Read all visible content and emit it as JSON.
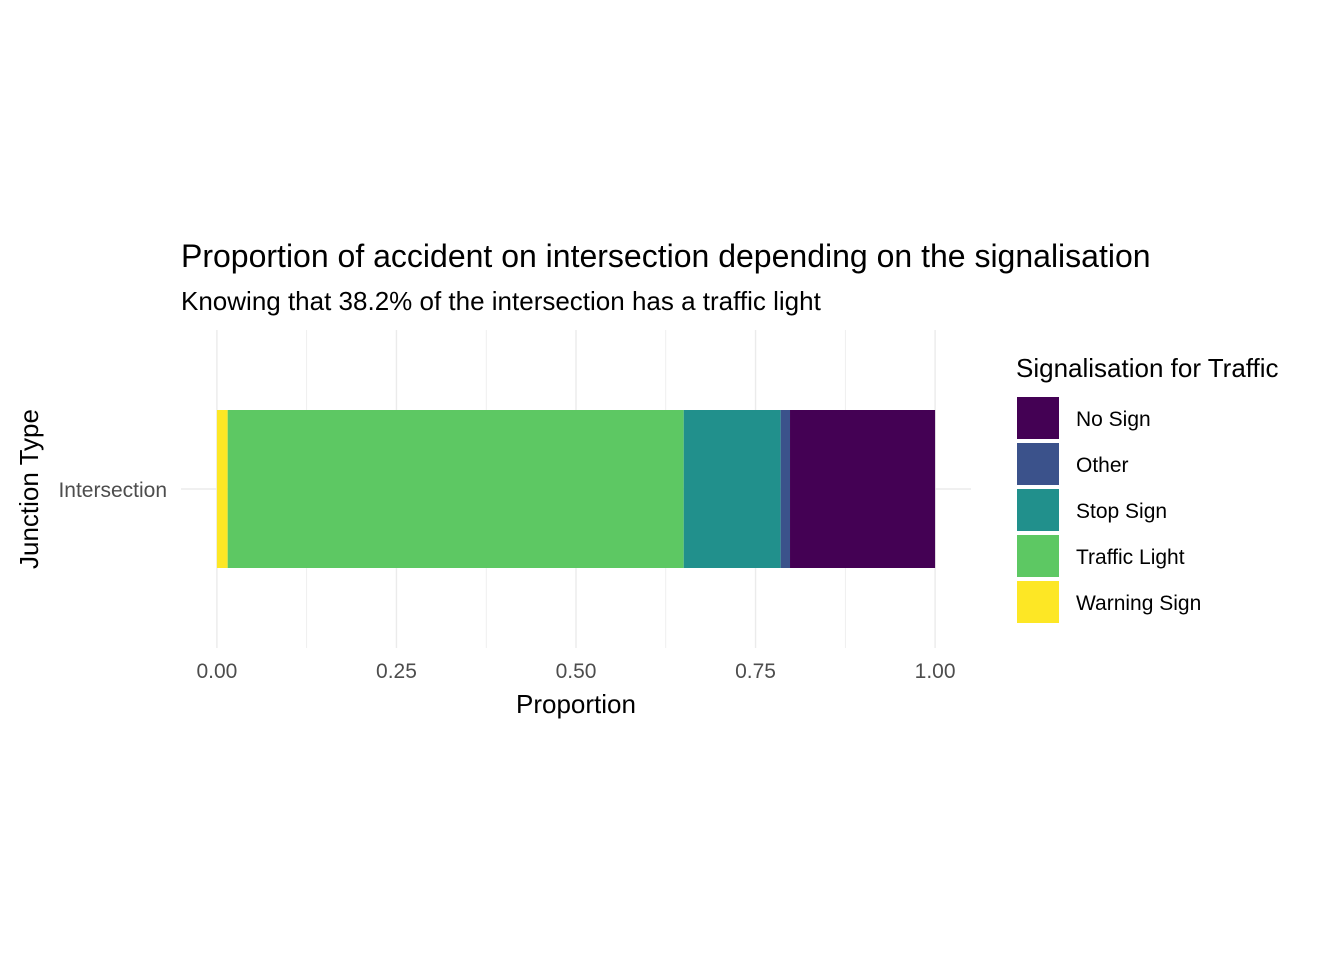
{
  "chart_data": {
    "type": "bar",
    "orientation": "horizontal",
    "stacked": true,
    "title": "Proportion of accident on intersection depending on the signalisation",
    "subtitle": "Knowing that 38.2% of the intersection has a traffic light",
    "xlabel": "Proportion",
    "ylabel": "Junction Type",
    "xlim": [
      -0.05,
      1.05
    ],
    "xticks": [
      0.0,
      0.25,
      0.5,
      0.75,
      1.0
    ],
    "xtick_labels": [
      "0.00",
      "0.25",
      "0.50",
      "0.75",
      "1.00"
    ],
    "grid": true,
    "categories": [
      "Intersection"
    ],
    "legend": {
      "title": "Signalisation for Traffic",
      "position": "right",
      "entries": [
        "No Sign",
        "Other",
        "Stop Sign",
        "Traffic Light",
        "Warning Sign"
      ]
    },
    "series": [
      {
        "name": "No Sign",
        "values": [
          0.202
        ],
        "color": "#440154"
      },
      {
        "name": "Other",
        "values": [
          0.013
        ],
        "color": "#3b528b"
      },
      {
        "name": "Stop Sign",
        "values": [
          0.135
        ],
        "color": "#21908c"
      },
      {
        "name": "Traffic Light",
        "values": [
          0.635
        ],
        "color": "#5dc863"
      },
      {
        "name": "Warning Sign",
        "values": [
          0.015
        ],
        "color": "#fde725"
      }
    ],
    "stack_order_left_to_right": [
      "Warning Sign",
      "Traffic Light",
      "Stop Sign",
      "Other",
      "No Sign"
    ]
  }
}
